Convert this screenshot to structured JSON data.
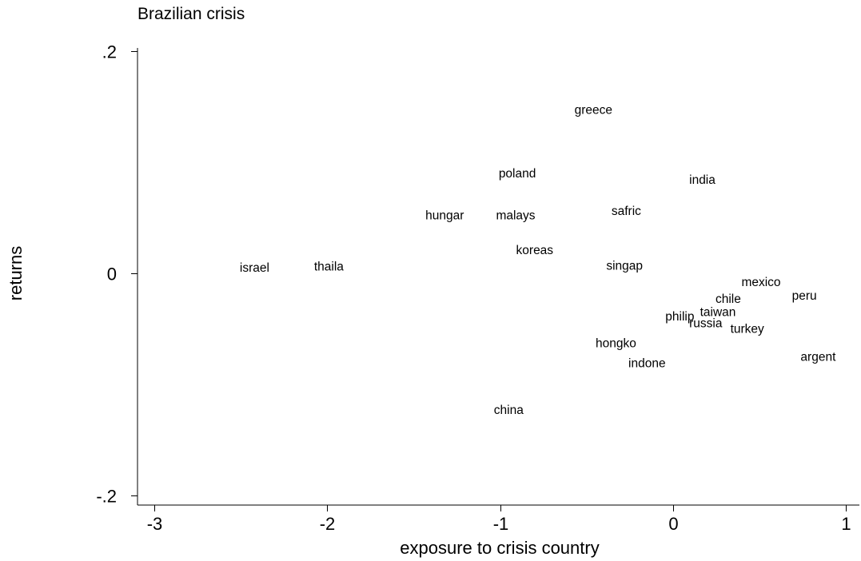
{
  "chart_data": {
    "type": "scatter",
    "title": "Brazilian crisis",
    "xlabel": "exposure to crisis country",
    "ylabel": "returns",
    "xlim": [
      -3.1,
      1.05
    ],
    "ylim": [
      -0.21,
      0.201
    ],
    "x_ticks": [
      {
        "value": -3,
        "label": "-3"
      },
      {
        "value": -2,
        "label": "-2"
      },
      {
        "value": -1,
        "label": "-1"
      },
      {
        "value": 0,
        "label": "0"
      },
      {
        "value": 1,
        "label": "1"
      }
    ],
    "y_ticks": [
      {
        "value": 0.2,
        "label": ".2"
      },
      {
        "value": 0,
        "label": "0"
      },
      {
        "value": -0.2,
        "label": "-.2"
      }
    ],
    "grid": false,
    "legend": "none",
    "marker": "label-only",
    "points": [
      {
        "label": "greece",
        "x": -0.46,
        "y": 0.147
      },
      {
        "label": "poland",
        "x": -0.9,
        "y": 0.09
      },
      {
        "label": "india",
        "x": 0.17,
        "y": 0.084
      },
      {
        "label": "hungar",
        "x": -1.32,
        "y": 0.052
      },
      {
        "label": "malays",
        "x": -0.91,
        "y": 0.052
      },
      {
        "label": "safric",
        "x": -0.27,
        "y": 0.056
      },
      {
        "label": "koreas",
        "x": -0.8,
        "y": 0.021
      },
      {
        "label": "israel",
        "x": -2.42,
        "y": 0.005
      },
      {
        "label": "thaila",
        "x": -1.99,
        "y": 0.006
      },
      {
        "label": "singap",
        "x": -0.28,
        "y": 0.007
      },
      {
        "label": "mexico",
        "x": 0.51,
        "y": -0.008
      },
      {
        "label": "peru",
        "x": 0.76,
        "y": -0.02
      },
      {
        "label": "chile",
        "x": 0.32,
        "y": -0.023
      },
      {
        "label": "taiwan",
        "x": 0.26,
        "y": -0.035
      },
      {
        "label": "philip",
        "x": 0.04,
        "y": -0.039
      },
      {
        "label": "russia",
        "x": 0.19,
        "y": -0.045
      },
      {
        "label": "turkey",
        "x": 0.43,
        "y": -0.05
      },
      {
        "label": "hongko",
        "x": -0.33,
        "y": -0.063
      },
      {
        "label": "argent",
        "x": 0.84,
        "y": -0.075
      },
      {
        "label": "indone",
        "x": -0.15,
        "y": -0.081
      },
      {
        "label": "china",
        "x": -0.95,
        "y": -0.123
      }
    ]
  }
}
